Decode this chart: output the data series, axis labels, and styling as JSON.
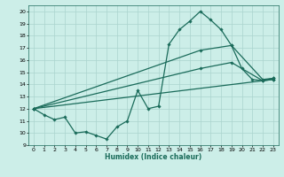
{
  "bg_color": "#cceee8",
  "grid_color": "#aad4ce",
  "line_color": "#1a6b5a",
  "xlabel": "Humidex (Indice chaleur)",
  "xlim": [
    -0.5,
    23.5
  ],
  "ylim": [
    9,
    20.5
  ],
  "yticks": [
    9,
    10,
    11,
    12,
    13,
    14,
    15,
    16,
    17,
    18,
    19,
    20
  ],
  "xticks": [
    0,
    1,
    2,
    3,
    4,
    5,
    6,
    7,
    8,
    9,
    10,
    11,
    12,
    13,
    14,
    15,
    16,
    17,
    18,
    19,
    20,
    21,
    22,
    23
  ],
  "series": [
    {
      "x": [
        0,
        1,
        2,
        3,
        4,
        5,
        6,
        7,
        8,
        9,
        10,
        11,
        12,
        13,
        14,
        15,
        16,
        17,
        18,
        19,
        20,
        21,
        22,
        23
      ],
      "y": [
        12,
        11.5,
        11.1,
        11.3,
        10.0,
        10.1,
        9.8,
        9.5,
        10.5,
        11.0,
        13.5,
        12.0,
        12.2,
        17.3,
        18.5,
        19.2,
        20.0,
        19.3,
        18.5,
        17.2,
        15.3,
        14.4,
        14.3,
        14.5
      ]
    },
    {
      "x": [
        0,
        16,
        19,
        22,
        23
      ],
      "y": [
        12,
        16.8,
        17.2,
        14.4,
        14.5
      ]
    },
    {
      "x": [
        0,
        16,
        19,
        22,
        23
      ],
      "y": [
        12,
        15.3,
        15.8,
        14.3,
        14.4
      ]
    },
    {
      "x": [
        0,
        23
      ],
      "y": [
        12,
        14.4
      ]
    }
  ]
}
